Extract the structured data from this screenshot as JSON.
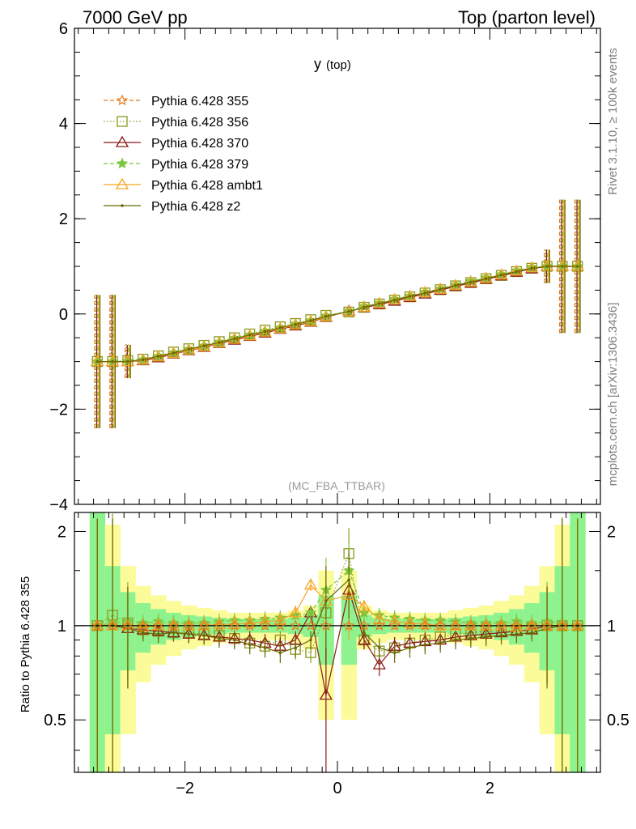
{
  "header": {
    "left_title": "7000 GeV pp",
    "right_title": "Top (parton level)"
  },
  "side": {
    "rivet": "Rivet 3.1.10, ≥ 100k events",
    "mcplots": "mcplots.cern.ch [arXiv:1306.3436]"
  },
  "chart_data": [
    {
      "type": "line",
      "title": "y",
      "title_sub": "(top)",
      "analysis_label": "(MC_FBA_TTBAR)",
      "xlim": [
        -3.45,
        3.45
      ],
      "ylim": [
        -4,
        6
      ],
      "y_ticks": [
        "−4",
        "−2",
        "0",
        "2",
        "4",
        "6"
      ],
      "legend_position": "top-left",
      "x": [
        -3.15,
        -2.95,
        -2.75,
        -2.55,
        -2.35,
        -2.15,
        -1.95,
        -1.75,
        -1.55,
        -1.35,
        -1.15,
        -0.95,
        -0.75,
        -0.55,
        -0.35,
        -0.15,
        0.15,
        0.35,
        0.55,
        0.75,
        0.95,
        1.15,
        1.35,
        1.55,
        1.75,
        1.95,
        2.15,
        2.35,
        2.55,
        2.75,
        2.95,
        3.15
      ],
      "series": [
        {
          "name": "Pythia 6.428 355",
          "color": "#e87a1d",
          "marker": "star-open",
          "dash": "dashed",
          "values": [
            -1.0,
            -1.0,
            -1.0,
            -0.97,
            -0.9,
            -0.82,
            -0.75,
            -0.68,
            -0.6,
            -0.52,
            -0.45,
            -0.37,
            -0.3,
            -0.22,
            -0.15,
            -0.05,
            0.05,
            0.15,
            0.22,
            0.3,
            0.37,
            0.45,
            0.52,
            0.6,
            0.68,
            0.75,
            0.82,
            0.9,
            0.97,
            1.0,
            1.0,
            1.0
          ]
        },
        {
          "name": "Pythia 6.428 356",
          "color": "#8a9a1a",
          "marker": "square-open",
          "dash": "dotted",
          "values": [
            -1.0,
            -1.0,
            -0.98,
            -0.95,
            -0.88,
            -0.8,
            -0.73,
            -0.66,
            -0.58,
            -0.5,
            -0.42,
            -0.34,
            -0.27,
            -0.2,
            -0.12,
            -0.03,
            0.04,
            0.14,
            0.21,
            0.29,
            0.36,
            0.44,
            0.51,
            0.59,
            0.66,
            0.74,
            0.81,
            0.89,
            0.96,
            1.0,
            1.0,
            1.0
          ]
        },
        {
          "name": "Pythia 6.428 370",
          "color": "#8b1a1a",
          "marker": "triangle-open",
          "dash": "solid",
          "values": [
            -1.0,
            -1.0,
            -1.0,
            -0.98,
            -0.92,
            -0.84,
            -0.77,
            -0.7,
            -0.62,
            -0.55,
            -0.47,
            -0.4,
            -0.32,
            -0.25,
            -0.17,
            -0.07,
            0.06,
            0.13,
            0.2,
            0.27,
            0.35,
            0.42,
            0.5,
            0.58,
            0.65,
            0.73,
            0.8,
            0.88,
            0.95,
            1.0,
            1.0,
            1.0
          ]
        },
        {
          "name": "Pythia 6.428 379",
          "color": "#7cc63e",
          "marker": "star",
          "dash": "dashed",
          "values": [
            -1.0,
            -1.0,
            -0.99,
            -0.96,
            -0.89,
            -0.81,
            -0.74,
            -0.67,
            -0.59,
            -0.51,
            -0.44,
            -0.36,
            -0.29,
            -0.21,
            -0.14,
            -0.04,
            0.06,
            0.16,
            0.23,
            0.31,
            0.38,
            0.46,
            0.53,
            0.61,
            0.69,
            0.76,
            0.83,
            0.91,
            0.98,
            1.0,
            1.0,
            1.0
          ]
        },
        {
          "name": "Pythia 6.428 ambt1",
          "color": "#f5a623",
          "marker": "triangle-open",
          "dash": "solid",
          "values": [
            -1.0,
            -1.0,
            -1.0,
            -0.97,
            -0.9,
            -0.83,
            -0.76,
            -0.69,
            -0.61,
            -0.53,
            -0.46,
            -0.38,
            -0.31,
            -0.23,
            -0.16,
            -0.06,
            0.05,
            0.14,
            0.22,
            0.3,
            0.37,
            0.45,
            0.52,
            0.6,
            0.67,
            0.75,
            0.82,
            0.9,
            0.97,
            1.0,
            1.0,
            1.0
          ]
        },
        {
          "name": "Pythia 6.428 z2",
          "color": "#6b6b00",
          "marker": "dot",
          "dash": "solid",
          "values": [
            -1.0,
            -1.0,
            -1.0,
            -0.96,
            -0.89,
            -0.82,
            -0.74,
            -0.67,
            -0.6,
            -0.52,
            -0.44,
            -0.37,
            -0.29,
            -0.22,
            -0.14,
            -0.05,
            0.05,
            0.14,
            0.22,
            0.29,
            0.37,
            0.44,
            0.52,
            0.6,
            0.67,
            0.74,
            0.82,
            0.89,
            0.96,
            1.0,
            1.0,
            1.0
          ]
        }
      ]
    },
    {
      "type": "line",
      "ylabel": "Ratio to Pythia 6.428 355",
      "xlim": [
        -3.45,
        3.45
      ],
      "ylim": [
        0.34,
        2.3
      ],
      "x_ticks": [
        "−2",
        "0",
        "2"
      ],
      "y_ticks": [
        "0.5",
        "1",
        "2"
      ],
      "reference_value": 1,
      "bands": {
        "x": [
          -3.15,
          -2.95,
          -2.75,
          -2.55,
          -2.35,
          -2.15,
          -1.95,
          -1.75,
          -1.55,
          -1.35,
          -1.15,
          -0.95,
          -0.75,
          -0.55,
          -0.35,
          -0.15,
          0.15,
          0.35,
          0.55,
          0.75,
          0.95,
          1.15,
          1.35,
          1.55,
          1.75,
          1.95,
          2.15,
          2.35,
          2.55,
          2.75,
          2.95,
          3.15
        ],
        "green_half_width": [
          1.5,
          0.55,
          0.28,
          0.18,
          0.13,
          0.1,
          0.08,
          0.07,
          0.06,
          0.05,
          0.05,
          0.05,
          0.05,
          0.06,
          0.08,
          0.25,
          0.25,
          0.08,
          0.06,
          0.05,
          0.05,
          0.05,
          0.05,
          0.06,
          0.07,
          0.08,
          0.1,
          0.13,
          0.18,
          0.28,
          0.55,
          1.5
        ],
        "yellow_half_width": [
          2.0,
          1.1,
          0.55,
          0.34,
          0.25,
          0.2,
          0.16,
          0.14,
          0.12,
          0.1,
          0.1,
          0.1,
          0.1,
          0.12,
          0.16,
          0.5,
          0.5,
          0.16,
          0.12,
          0.1,
          0.1,
          0.1,
          0.1,
          0.12,
          0.14,
          0.16,
          0.2,
          0.25,
          0.34,
          0.55,
          1.1,
          2.0
        ]
      },
      "series": [
        {
          "name": "Pythia 6.428 356",
          "values": [
            1.0,
            1.08,
            1.02,
            0.97,
            0.96,
            0.95,
            0.95,
            0.94,
            0.93,
            0.91,
            0.88,
            0.86,
            0.9,
            0.84,
            0.82,
            1.1,
            1.7,
            0.9,
            0.83,
            0.85,
            0.88,
            0.9,
            0.92,
            0.94,
            0.95,
            0.96,
            0.96,
            0.97,
            0.98,
            1.0,
            1.0,
            1.0
          ]
        },
        {
          "name": "Pythia 6.428 370",
          "values": [
            1.0,
            1.0,
            0.98,
            0.97,
            0.96,
            0.95,
            0.94,
            0.93,
            0.92,
            0.91,
            0.9,
            0.88,
            0.86,
            0.9,
            1.1,
            0.6,
            1.3,
            0.9,
            0.75,
            0.86,
            0.88,
            0.89,
            0.9,
            0.92,
            0.93,
            0.94,
            0.95,
            0.96,
            0.97,
            1.0,
            1.0,
            1.0
          ]
        },
        {
          "name": "Pythia 6.428 379",
          "values": [
            1.0,
            1.02,
            1.03,
            1.02,
            1.03,
            1.02,
            1.02,
            1.02,
            1.03,
            1.04,
            1.04,
            1.05,
            1.06,
            1.08,
            1.1,
            1.3,
            1.5,
            1.1,
            1.08,
            1.06,
            1.05,
            1.04,
            1.04,
            1.03,
            1.02,
            1.02,
            1.02,
            1.03,
            1.02,
            1.03,
            1.02,
            1.0
          ]
        },
        {
          "name": "Pythia 6.428 ambt1",
          "values": [
            1.0,
            1.0,
            1.0,
            0.99,
            1.0,
            1.0,
            1.0,
            1.0,
            1.01,
            1.01,
            1.02,
            1.03,
            1.04,
            1.1,
            1.35,
            1.2,
            1.25,
            1.15,
            1.05,
            1.03,
            1.02,
            1.01,
            1.0,
            1.0,
            1.0,
            1.0,
            1.0,
            0.99,
            1.0,
            1.0,
            1.0,
            1.0
          ]
        },
        {
          "name": "Pythia 6.428 z2",
          "values": [
            1.0,
            1.0,
            0.98,
            0.95,
            0.94,
            0.95,
            0.94,
            0.93,
            0.91,
            0.9,
            0.87,
            0.85,
            0.82,
            0.85,
            0.9,
            1.2,
            1.4,
            0.95,
            0.85,
            0.82,
            0.85,
            0.87,
            0.88,
            0.9,
            0.91,
            0.92,
            0.93,
            0.94,
            0.95,
            0.98,
            1.0,
            1.0
          ]
        }
      ]
    }
  ]
}
